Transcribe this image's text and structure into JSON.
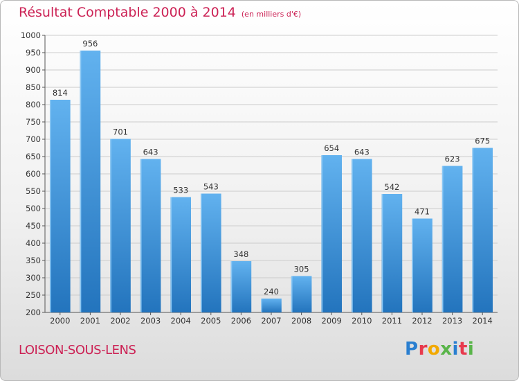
{
  "header": {
    "title": "Résultat Comptable 2000 à 2014",
    "subtitle": "(en milliers d'€)"
  },
  "footer": {
    "place": "LOISON-SOUS-LENS",
    "brand": [
      "P",
      "r",
      "o",
      "x",
      "i",
      "t",
      "i"
    ],
    "brand_colors": [
      "#2a7fd0",
      "#e83a4d",
      "#f2a900",
      "#5ab54a",
      "#2a7fd0",
      "#e83a4d",
      "#5ab54a"
    ]
  },
  "chart_data": {
    "type": "bar",
    "title": "Résultat Comptable 2000 à 2014",
    "subtitle": "(en milliers d'€)",
    "categories": [
      "2000",
      "2001",
      "2002",
      "2003",
      "2004",
      "2005",
      "2006",
      "2007",
      "2008",
      "2009",
      "2010",
      "2011",
      "2012",
      "2013",
      "2014"
    ],
    "values": [
      814,
      956,
      701,
      643,
      533,
      543,
      348,
      240,
      305,
      654,
      643,
      542,
      471,
      623,
      675
    ],
    "ylim": [
      200,
      1000
    ],
    "yticks": [
      200,
      250,
      300,
      350,
      400,
      450,
      500,
      550,
      600,
      650,
      700,
      750,
      800,
      850,
      900,
      950,
      1000
    ],
    "xlabel": "",
    "ylabel": "",
    "grid": true,
    "bar_color": "#3f95dc",
    "grid_color": "#cccccc"
  }
}
